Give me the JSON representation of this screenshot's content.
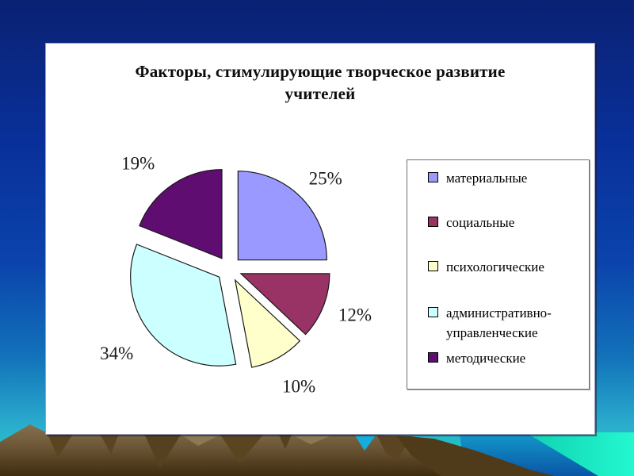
{
  "slide": {
    "title_line1": "Факторы, стимулирующие творческое развитие",
    "title_line2": "учителей"
  },
  "chart_data": {
    "type": "pie",
    "title": "Факторы, стимулирующие творческое развитие учителей",
    "categories": [
      "материальные",
      "социальные",
      "психологические",
      "административно-управленческие",
      "методические"
    ],
    "values": [
      25,
      12,
      10,
      34,
      19
    ],
    "labels": [
      "25%",
      "12%",
      "10%",
      "34%",
      "19%"
    ],
    "colors": [
      "#9999FF",
      "#993366",
      "#FFFFCC",
      "#CCFFFF",
      "#5F0D70"
    ],
    "unit": "percent",
    "start_angle_deg": 0,
    "direction": "clockwise",
    "exploded": true,
    "legend_position": "right",
    "slice_border_color": "#1a1a1a",
    "label_color": "#1a1a1a"
  }
}
